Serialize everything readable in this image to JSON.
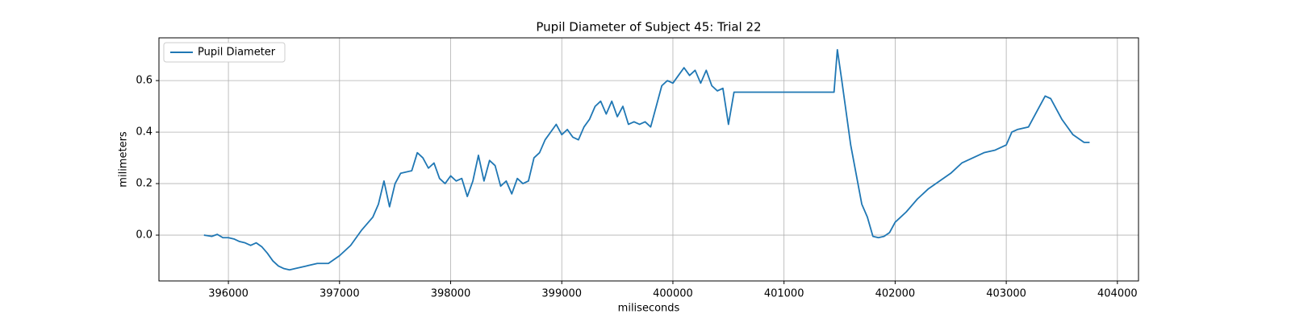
{
  "chart_data": {
    "type": "line",
    "title": "Pupil Diameter of Subject 45: Trial 22",
    "x_label": "miliseconds",
    "y_label": "milimeters",
    "x": [
      395780,
      395850,
      395900,
      395950,
      396000,
      396050,
      396100,
      396150,
      396200,
      396250,
      396300,
      396350,
      396400,
      396450,
      396500,
      396550,
      396600,
      396700,
      396800,
      396900,
      397000,
      397100,
      397200,
      397300,
      397350,
      397400,
      397450,
      397500,
      397550,
      397650,
      397700,
      397750,
      397800,
      397850,
      397900,
      397950,
      398000,
      398050,
      398100,
      398150,
      398200,
      398250,
      398300,
      398350,
      398400,
      398450,
      398500,
      398550,
      398600,
      398650,
      398700,
      398750,
      398800,
      398850,
      398900,
      398950,
      399000,
      399050,
      399100,
      399150,
      399200,
      399250,
      399300,
      399350,
      399400,
      399450,
      399500,
      399550,
      399600,
      399650,
      399700,
      399750,
      399800,
      399850,
      399900,
      399950,
      400000,
      400050,
      400100,
      400150,
      400200,
      400250,
      400300,
      400350,
      400400,
      400450,
      400500,
      400550,
      401450,
      401480,
      401520,
      401600,
      401700,
      401750,
      401800,
      401850,
      401900,
      401950,
      402000,
      402100,
      402200,
      402300,
      402400,
      402500,
      402600,
      402700,
      402800,
      402900,
      403000,
      403050,
      403100,
      403200,
      403300,
      403350,
      403400,
      403500,
      403600,
      403700,
      403750
    ],
    "series": [
      {
        "name": "Pupil Diameter",
        "color": "#1f77b4",
        "values": [
          0.0,
          -0.005,
          0.003,
          -0.01,
          -0.01,
          -0.015,
          -0.025,
          -0.03,
          -0.04,
          -0.03,
          -0.045,
          -0.07,
          -0.1,
          -0.12,
          -0.13,
          -0.135,
          -0.13,
          -0.12,
          -0.11,
          -0.11,
          -0.08,
          -0.04,
          0.02,
          0.07,
          0.12,
          0.21,
          0.11,
          0.2,
          0.24,
          0.25,
          0.32,
          0.3,
          0.26,
          0.28,
          0.22,
          0.2,
          0.23,
          0.21,
          0.22,
          0.15,
          0.21,
          0.31,
          0.21,
          0.29,
          0.27,
          0.19,
          0.21,
          0.16,
          0.22,
          0.2,
          0.21,
          0.3,
          0.32,
          0.37,
          0.4,
          0.43,
          0.39,
          0.41,
          0.38,
          0.37,
          0.42,
          0.45,
          0.5,
          0.52,
          0.47,
          0.52,
          0.46,
          0.5,
          0.43,
          0.44,
          0.43,
          0.44,
          0.42,
          0.5,
          0.58,
          0.6,
          0.59,
          0.62,
          0.65,
          0.62,
          0.64,
          0.59,
          0.64,
          0.58,
          0.56,
          0.57,
          0.43,
          0.555,
          0.555,
          0.72,
          0.6,
          0.35,
          0.12,
          0.07,
          -0.005,
          -0.01,
          -0.005,
          0.01,
          0.05,
          0.09,
          0.14,
          0.18,
          0.21,
          0.24,
          0.28,
          0.3,
          0.32,
          0.33,
          0.35,
          0.4,
          0.41,
          0.42,
          0.5,
          0.54,
          0.53,
          0.45,
          0.39,
          0.36,
          0.36
        ]
      }
    ],
    "xlim": [
      395375,
      404190
    ],
    "ylim": [
      -0.178,
      0.766
    ],
    "xticks": [
      396000,
      397000,
      398000,
      399000,
      400000,
      401000,
      402000,
      403000,
      404000
    ],
    "yticks": [
      {
        "value": 0,
        "label": "0.0"
      },
      0.2,
      0.4,
      0.6
    ],
    "grid": true,
    "legend": "upper left"
  }
}
